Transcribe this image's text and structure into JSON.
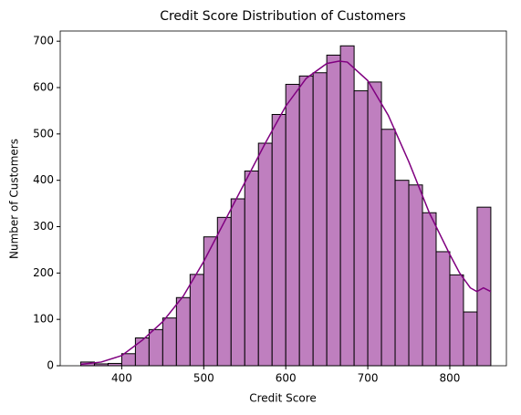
{
  "chart_data": {
    "type": "histogram",
    "title": "Credit Score Distribution of Customers",
    "xlabel": "Credit Score",
    "ylabel": "Number of Customers",
    "bins": [
      350,
      366.67,
      383.33,
      400,
      416.67,
      433.33,
      450,
      466.67,
      483.33,
      500,
      516.67,
      533.33,
      550,
      566.67,
      583.33,
      600,
      616.67,
      633.33,
      650,
      666.67,
      683.33,
      700,
      716.67,
      733.33,
      750,
      766.67,
      783.33,
      800,
      816.67,
      833.33,
      850
    ],
    "values": [
      8,
      4,
      5,
      26,
      60,
      78,
      103,
      147,
      197,
      278,
      320,
      360,
      420,
      480,
      542,
      607,
      625,
      632,
      670,
      690,
      593,
      612,
      510,
      400,
      390,
      330,
      246,
      196,
      116,
      342
    ],
    "color": "#bf7fbf",
    "edgecolor": "#000000",
    "kde": {
      "color": "#800080",
      "x": [
        350,
        375,
        400,
        425,
        450,
        475,
        500,
        525,
        550,
        575,
        600,
        625,
        650,
        665,
        675,
        700,
        725,
        750,
        775,
        800,
        812,
        825,
        833,
        841,
        850
      ],
      "values": [
        3,
        8,
        22,
        55,
        95,
        150,
        225,
        310,
        395,
        480,
        560,
        620,
        652,
        657,
        655,
        615,
        540,
        440,
        330,
        240,
        200,
        168,
        160,
        168,
        160
      ]
    },
    "xlim": [
      325,
      869
    ],
    "ylim": [
      0,
      722
    ],
    "xticks": [
      400,
      500,
      600,
      700,
      800
    ],
    "yticks": [
      0,
      100,
      200,
      300,
      400,
      500,
      600,
      700
    ]
  }
}
